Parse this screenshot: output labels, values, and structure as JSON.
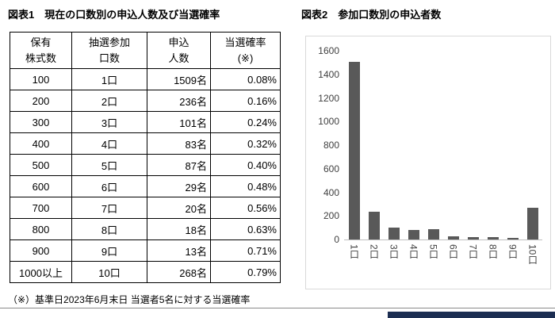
{
  "figure1": {
    "title": "図表1　現在の口数別の申込人数及び当選確率"
  },
  "figure2": {
    "title": "図表2　参加口数別の申込者数"
  },
  "footnote": "（※）基準日2023年6月末日 当選者5名に対する当選確率",
  "chart_data": [
    {
      "type": "table",
      "title": "図表1　現在の口数別の申込人数及び当選確率",
      "columns": [
        "保有\n株式数",
        "抽選参加\n口数",
        "申込\n人数",
        "当選確率\n(※)"
      ],
      "rows": [
        [
          "100",
          "1口",
          "1509名",
          "0.08%"
        ],
        [
          "200",
          "2口",
          "236名",
          "0.16%"
        ],
        [
          "300",
          "3口",
          "101名",
          "0.24%"
        ],
        [
          "400",
          "4口",
          "83名",
          "0.32%"
        ],
        [
          "500",
          "5口",
          "87名",
          "0.40%"
        ],
        [
          "600",
          "6口",
          "29名",
          "0.48%"
        ],
        [
          "700",
          "7口",
          "20名",
          "0.56%"
        ],
        [
          "800",
          "8口",
          "18名",
          "0.63%"
        ],
        [
          "900",
          "9口",
          "13名",
          "0.71%"
        ],
        [
          "1000以上",
          "10口",
          "268名",
          "0.79%"
        ]
      ]
    },
    {
      "type": "bar",
      "title": "図表2　参加口数別の申込者数",
      "categories": [
        "1口",
        "2口",
        "3口",
        "4口",
        "5口",
        "6口",
        "7口",
        "8口",
        "9口",
        "10口"
      ],
      "values": [
        1509,
        236,
        101,
        83,
        87,
        29,
        20,
        18,
        13,
        268
      ],
      "ylim": [
        0,
        1600
      ],
      "yticks": [
        0,
        200,
        400,
        600,
        800,
        1000,
        1200,
        1400,
        1600
      ],
      "grid": false,
      "legend": "none"
    }
  ],
  "colors": {
    "bar": "#595959",
    "chart_border": "#d9d9d9",
    "axis_line": "#bfbfbf",
    "table_border": "#000000",
    "footer_rule": "#8a8a8a",
    "footer_bar": "#1c2e52"
  }
}
